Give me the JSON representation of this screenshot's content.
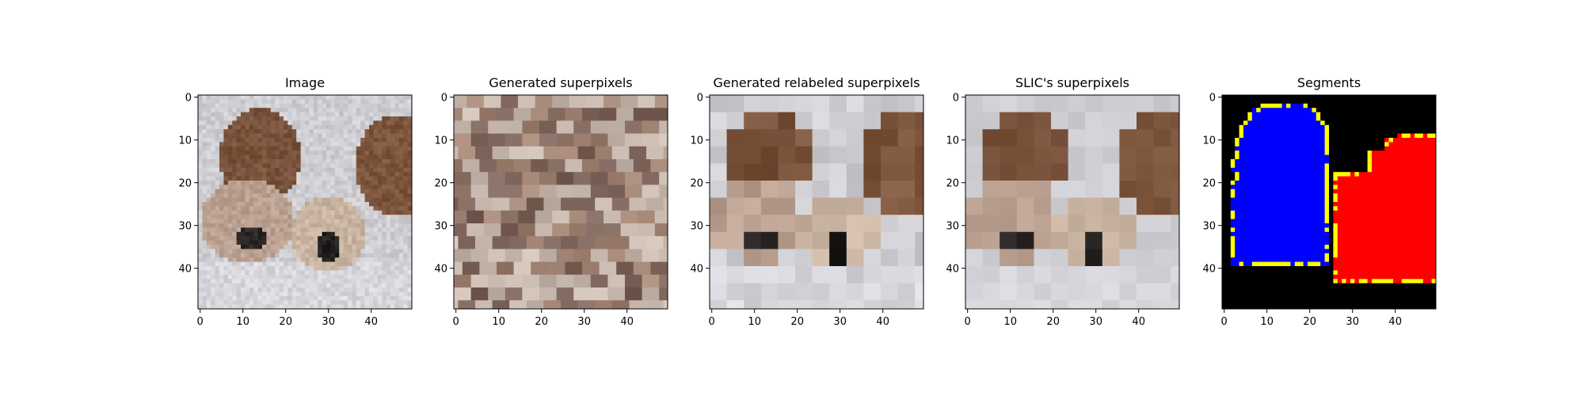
{
  "chart_data": [
    {
      "type": "image",
      "title": "Image",
      "xticks": [
        0,
        10,
        20,
        30,
        40
      ],
      "yticks": [
        0,
        10,
        20,
        30,
        40
      ],
      "xlim": [
        0,
        50
      ],
      "ylim": [
        50,
        0
      ],
      "content": "photograph of two bulldogs (pixelated)"
    },
    {
      "type": "image",
      "title": "Generated superpixels",
      "xticks": [
        0,
        10,
        20,
        30,
        40
      ],
      "yticks": [
        0,
        10,
        20,
        30,
        40
      ],
      "xlim": [
        0,
        50
      ],
      "ylim": [
        50,
        0
      ]
    },
    {
      "type": "image",
      "title": "Generated relabeled superpixels",
      "xticks": [
        0,
        10,
        20,
        30,
        40
      ],
      "yticks": [
        0,
        10,
        20,
        30,
        40
      ],
      "xlim": [
        0,
        50
      ],
      "ylim": [
        50,
        0
      ]
    },
    {
      "type": "image",
      "title": "SLIC's superpixels",
      "xticks": [
        0,
        10,
        20,
        30,
        40
      ],
      "yticks": [
        0,
        10,
        20,
        30,
        40
      ],
      "xlim": [
        0,
        50
      ],
      "ylim": [
        50,
        0
      ]
    },
    {
      "type": "image",
      "title": "Segments",
      "xticks": [
        0,
        10,
        20,
        30,
        40
      ],
      "yticks": [
        0,
        10,
        20,
        30,
        40
      ],
      "xlim": [
        0,
        50
      ],
      "ylim": [
        50,
        0
      ],
      "segment_colors": {
        "background": "#000000",
        "segment_1": "#0000ff",
        "segment_2": "#ff0000",
        "boundary": "#ffff00"
      }
    }
  ]
}
